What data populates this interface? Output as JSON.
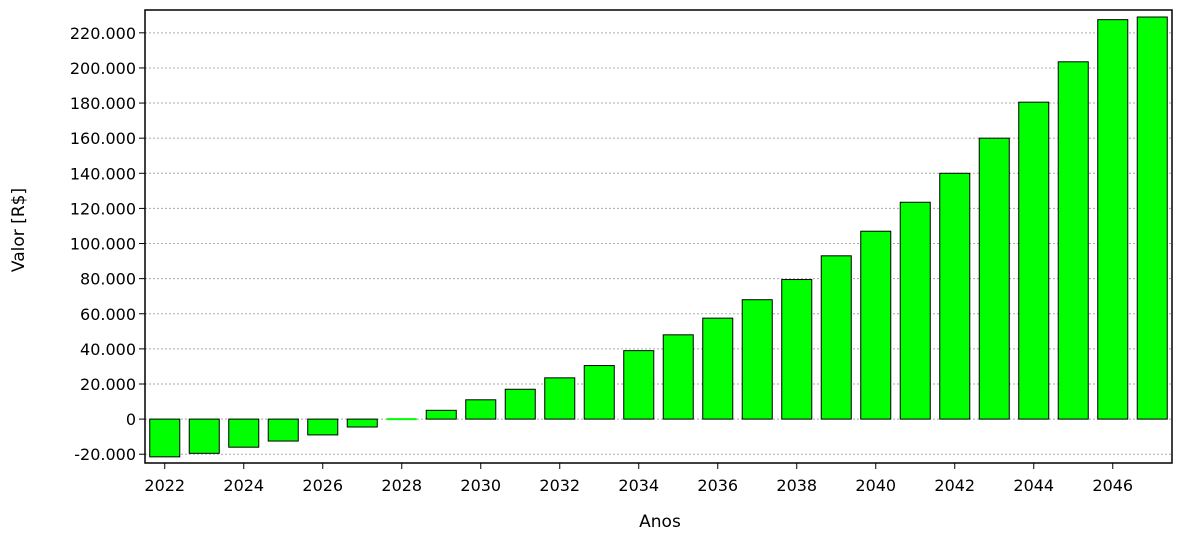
{
  "chart_data": {
    "type": "bar",
    "title": "",
    "xlabel": "Anos",
    "ylabel": "Valor [R$]",
    "categories": [
      "2022",
      "2023",
      "2024",
      "2025",
      "2026",
      "2027",
      "2028",
      "2029",
      "2030",
      "2031",
      "2032",
      "2033",
      "2034",
      "2035",
      "2036",
      "2037",
      "2038",
      "2039",
      "2040",
      "2041",
      "2042",
      "2043",
      "2044",
      "2045",
      "2046",
      "2047"
    ],
    "values": [
      -21500,
      -19500,
      -16000,
      -12500,
      -9000,
      -4500,
      0,
      5000,
      11000,
      17000,
      23500,
      30500,
      39000,
      48000,
      57500,
      68000,
      79500,
      93000,
      107000,
      123500,
      140000,
      160000,
      180500,
      203500,
      227500,
      229000
    ],
    "x_tick_labels": [
      "2022",
      "2024",
      "2026",
      "2028",
      "2030",
      "2032",
      "2034",
      "2036",
      "2038",
      "2040",
      "2042",
      "2044",
      "2046"
    ],
    "y_ticks": [
      -20000,
      0,
      20000,
      40000,
      60000,
      80000,
      100000,
      120000,
      140000,
      160000,
      180000,
      200000,
      220000
    ],
    "y_tick_labels": [
      "-20.000",
      "0",
      "20.000",
      "40.000",
      "60.000",
      "80.000",
      "100.000",
      "120.000",
      "140.000",
      "160.000",
      "180.000",
      "200.000",
      "220.000"
    ],
    "ylim": [
      -25000,
      233000
    ],
    "grid": true,
    "legend": "none",
    "colors": {
      "bar_fill": "#00ff00",
      "bar_stroke": "#000000",
      "grid": "#aaaaaa",
      "axis": "#000000"
    }
  }
}
